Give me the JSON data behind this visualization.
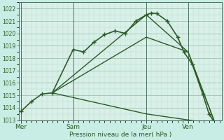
{
  "xlabel": "Pression niveau de la mer( hPa )",
  "background_color": "#c8ede4",
  "plot_bg_color": "#d8f0e8",
  "line_color": "#2d5a27",
  "ylim": [
    1013,
    1022.5
  ],
  "xlim": [
    -0.1,
    9.6
  ],
  "xtick_labels": [
    "Mer",
    "Sam",
    "Jeu",
    "Ven"
  ],
  "xtick_positions": [
    0,
    2.5,
    6.0,
    8.0
  ],
  "ytick_values": [
    1013,
    1014,
    1015,
    1016,
    1017,
    1018,
    1019,
    1020,
    1021,
    1022
  ],
  "series": [
    {
      "x": [
        0.0,
        0.5,
        1.0,
        1.5,
        2.5,
        3.0,
        3.5,
        4.0,
        4.5,
        5.0,
        5.5,
        6.0,
        6.25,
        6.5,
        7.0,
        7.5,
        7.8,
        8.2,
        8.7,
        9.0,
        9.3
      ],
      "y": [
        1013.7,
        1014.5,
        1015.1,
        1015.2,
        1018.7,
        1018.5,
        1019.3,
        1019.9,
        1020.2,
        1020.0,
        1021.0,
        1021.5,
        1021.65,
        1021.6,
        1021.0,
        1019.7,
        1018.5,
        1017.5,
        1015.1,
        1013.5,
        1012.7
      ],
      "style": "-",
      "marker": "+",
      "markersize": 4,
      "linewidth": 1.2,
      "markeredgewidth": 1.0
    },
    {
      "x": [
        1.5,
        6.0,
        8.0,
        9.3
      ],
      "y": [
        1015.2,
        1019.7,
        1018.5,
        1012.7
      ],
      "style": "-",
      "marker": null,
      "markersize": 0,
      "linewidth": 1.0
    },
    {
      "x": [
        1.5,
        6.0,
        8.0,
        9.3
      ],
      "y": [
        1015.2,
        1021.5,
        1018.5,
        1012.7
      ],
      "style": "-",
      "marker": null,
      "markersize": 0,
      "linewidth": 1.0
    },
    {
      "x": [
        1.5,
        6.0,
        9.3
      ],
      "y": [
        1015.2,
        1013.5,
        1012.7
      ],
      "style": "-",
      "marker": null,
      "markersize": 0,
      "linewidth": 1.0
    }
  ],
  "vlines": [
    0.0,
    2.5,
    6.0,
    8.0
  ],
  "grid_minor_color": "#b8d8cc",
  "grid_major_color": "#90b8a8",
  "ytick_fontsize": 5.5,
  "xtick_fontsize": 6.5
}
